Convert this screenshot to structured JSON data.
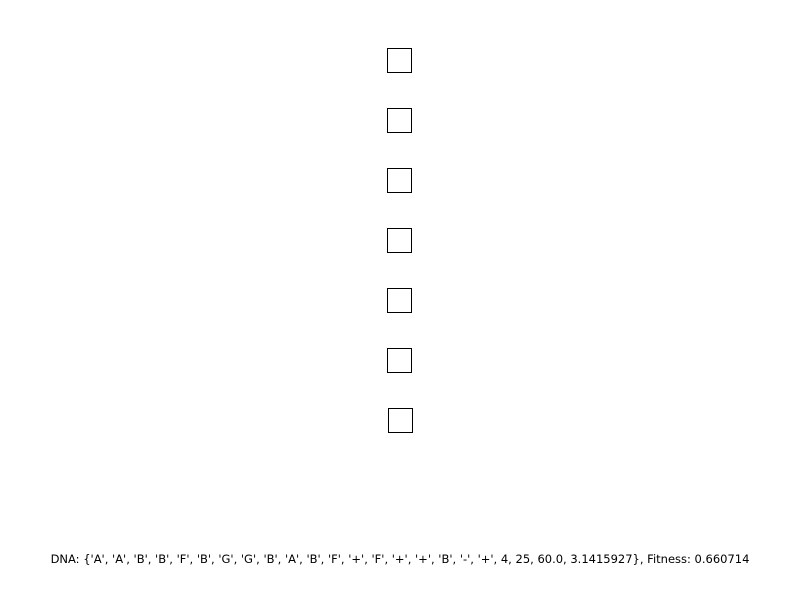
{
  "shapes": {
    "count": 7,
    "stroke_color": "#000000",
    "fill_color": "#ffffff"
  },
  "status": {
    "dna_text": "DNA: {'A', 'A', 'B', 'B', 'F', 'B', 'G', 'G', 'B', 'A', 'B', 'F', '+', 'F', '+', '+', 'B', '-', '+', 4, 25, 60.0, 3.1415927}, Fitness: 0.660714"
  }
}
